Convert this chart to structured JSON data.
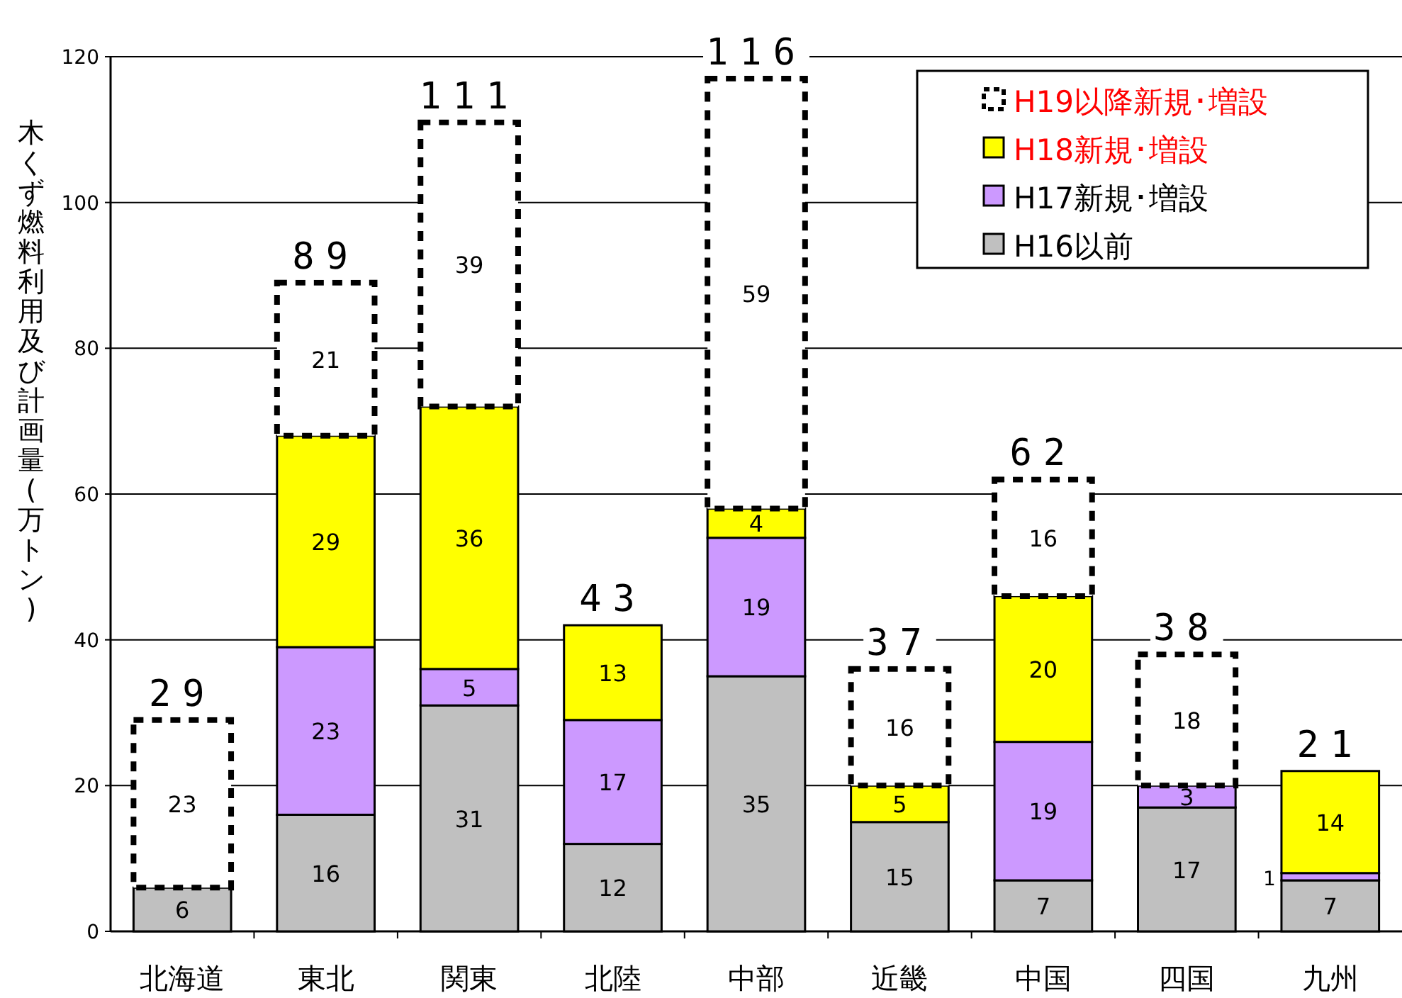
{
  "chart_data": {
    "type": "bar",
    "stacked": true,
    "ylabel": "木くず燃料利用及び計画量(万トン)",
    "categories": [
      "北海道",
      "東北",
      "関東",
      "北陸",
      "中部",
      "近畿",
      "中国",
      "四国",
      "九州"
    ],
    "series": [
      {
        "name": "H16以前",
        "color": "#c0c0c0",
        "values": [
          6,
          16,
          31,
          12,
          35,
          15,
          7,
          17,
          7
        ]
      },
      {
        "name": "H17新規･増設",
        "color": "#cc99ff",
        "values": [
          null,
          23,
          5,
          17,
          19,
          null,
          19,
          3,
          1
        ]
      },
      {
        "name": "H18新規･増設",
        "color": "#ffff00",
        "values": [
          null,
          29,
          36,
          13,
          4,
          5,
          20,
          null,
          14
        ]
      },
      {
        "name": "H19以降新規･増設",
        "color": "#ffffff",
        "line_style": "dashed",
        "values": [
          23,
          21,
          39,
          null,
          59,
          16,
          16,
          18,
          null
        ]
      }
    ],
    "totals": [
      "29",
      "89",
      "111",
      "43",
      "116",
      "37",
      "62",
      "38",
      "21"
    ],
    "data_labels": true,
    "ylim": [
      0,
      120
    ],
    "yticks": [
      0,
      20,
      40,
      60,
      80,
      100,
      120
    ],
    "grid": "y",
    "legend": "top right"
  }
}
